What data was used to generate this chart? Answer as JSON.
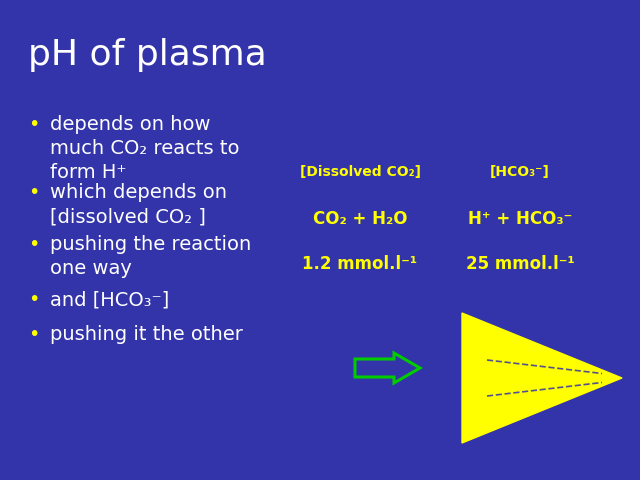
{
  "bg_color": "#3333aa",
  "title": "pH of plasma",
  "title_color": "#ffffff",
  "title_fontsize": 26,
  "bullet_dot_color": "#ffff00",
  "bullet_text_color": "#ffffff",
  "bullet_fontsize": 14,
  "bullets": [
    "depends on how\nmuch CO₂ reacts to\nform H⁺",
    "which depends on\n[dissolved CO₂ ]",
    "pushing the reaction\none way",
    "and [HCO₃⁻]",
    "pushing it the other"
  ],
  "left_label": "[Dissolved CO₂]",
  "left_formula": "CO₂ + H₂O",
  "left_value": "1.2 mmol.l⁻¹",
  "right_label": "[HCO₃⁻]",
  "right_formula": "H⁺ + HCO₃⁻",
  "right_value": "25 mmol.l⁻¹",
  "label_color": "#ffff00",
  "formula_color": "#ffff00",
  "value_color": "#ffff00",
  "small_arrow_color": "#00cc00",
  "big_triangle_color": "#ffff00",
  "figsize": [
    6.4,
    4.8
  ],
  "dpi": 100
}
